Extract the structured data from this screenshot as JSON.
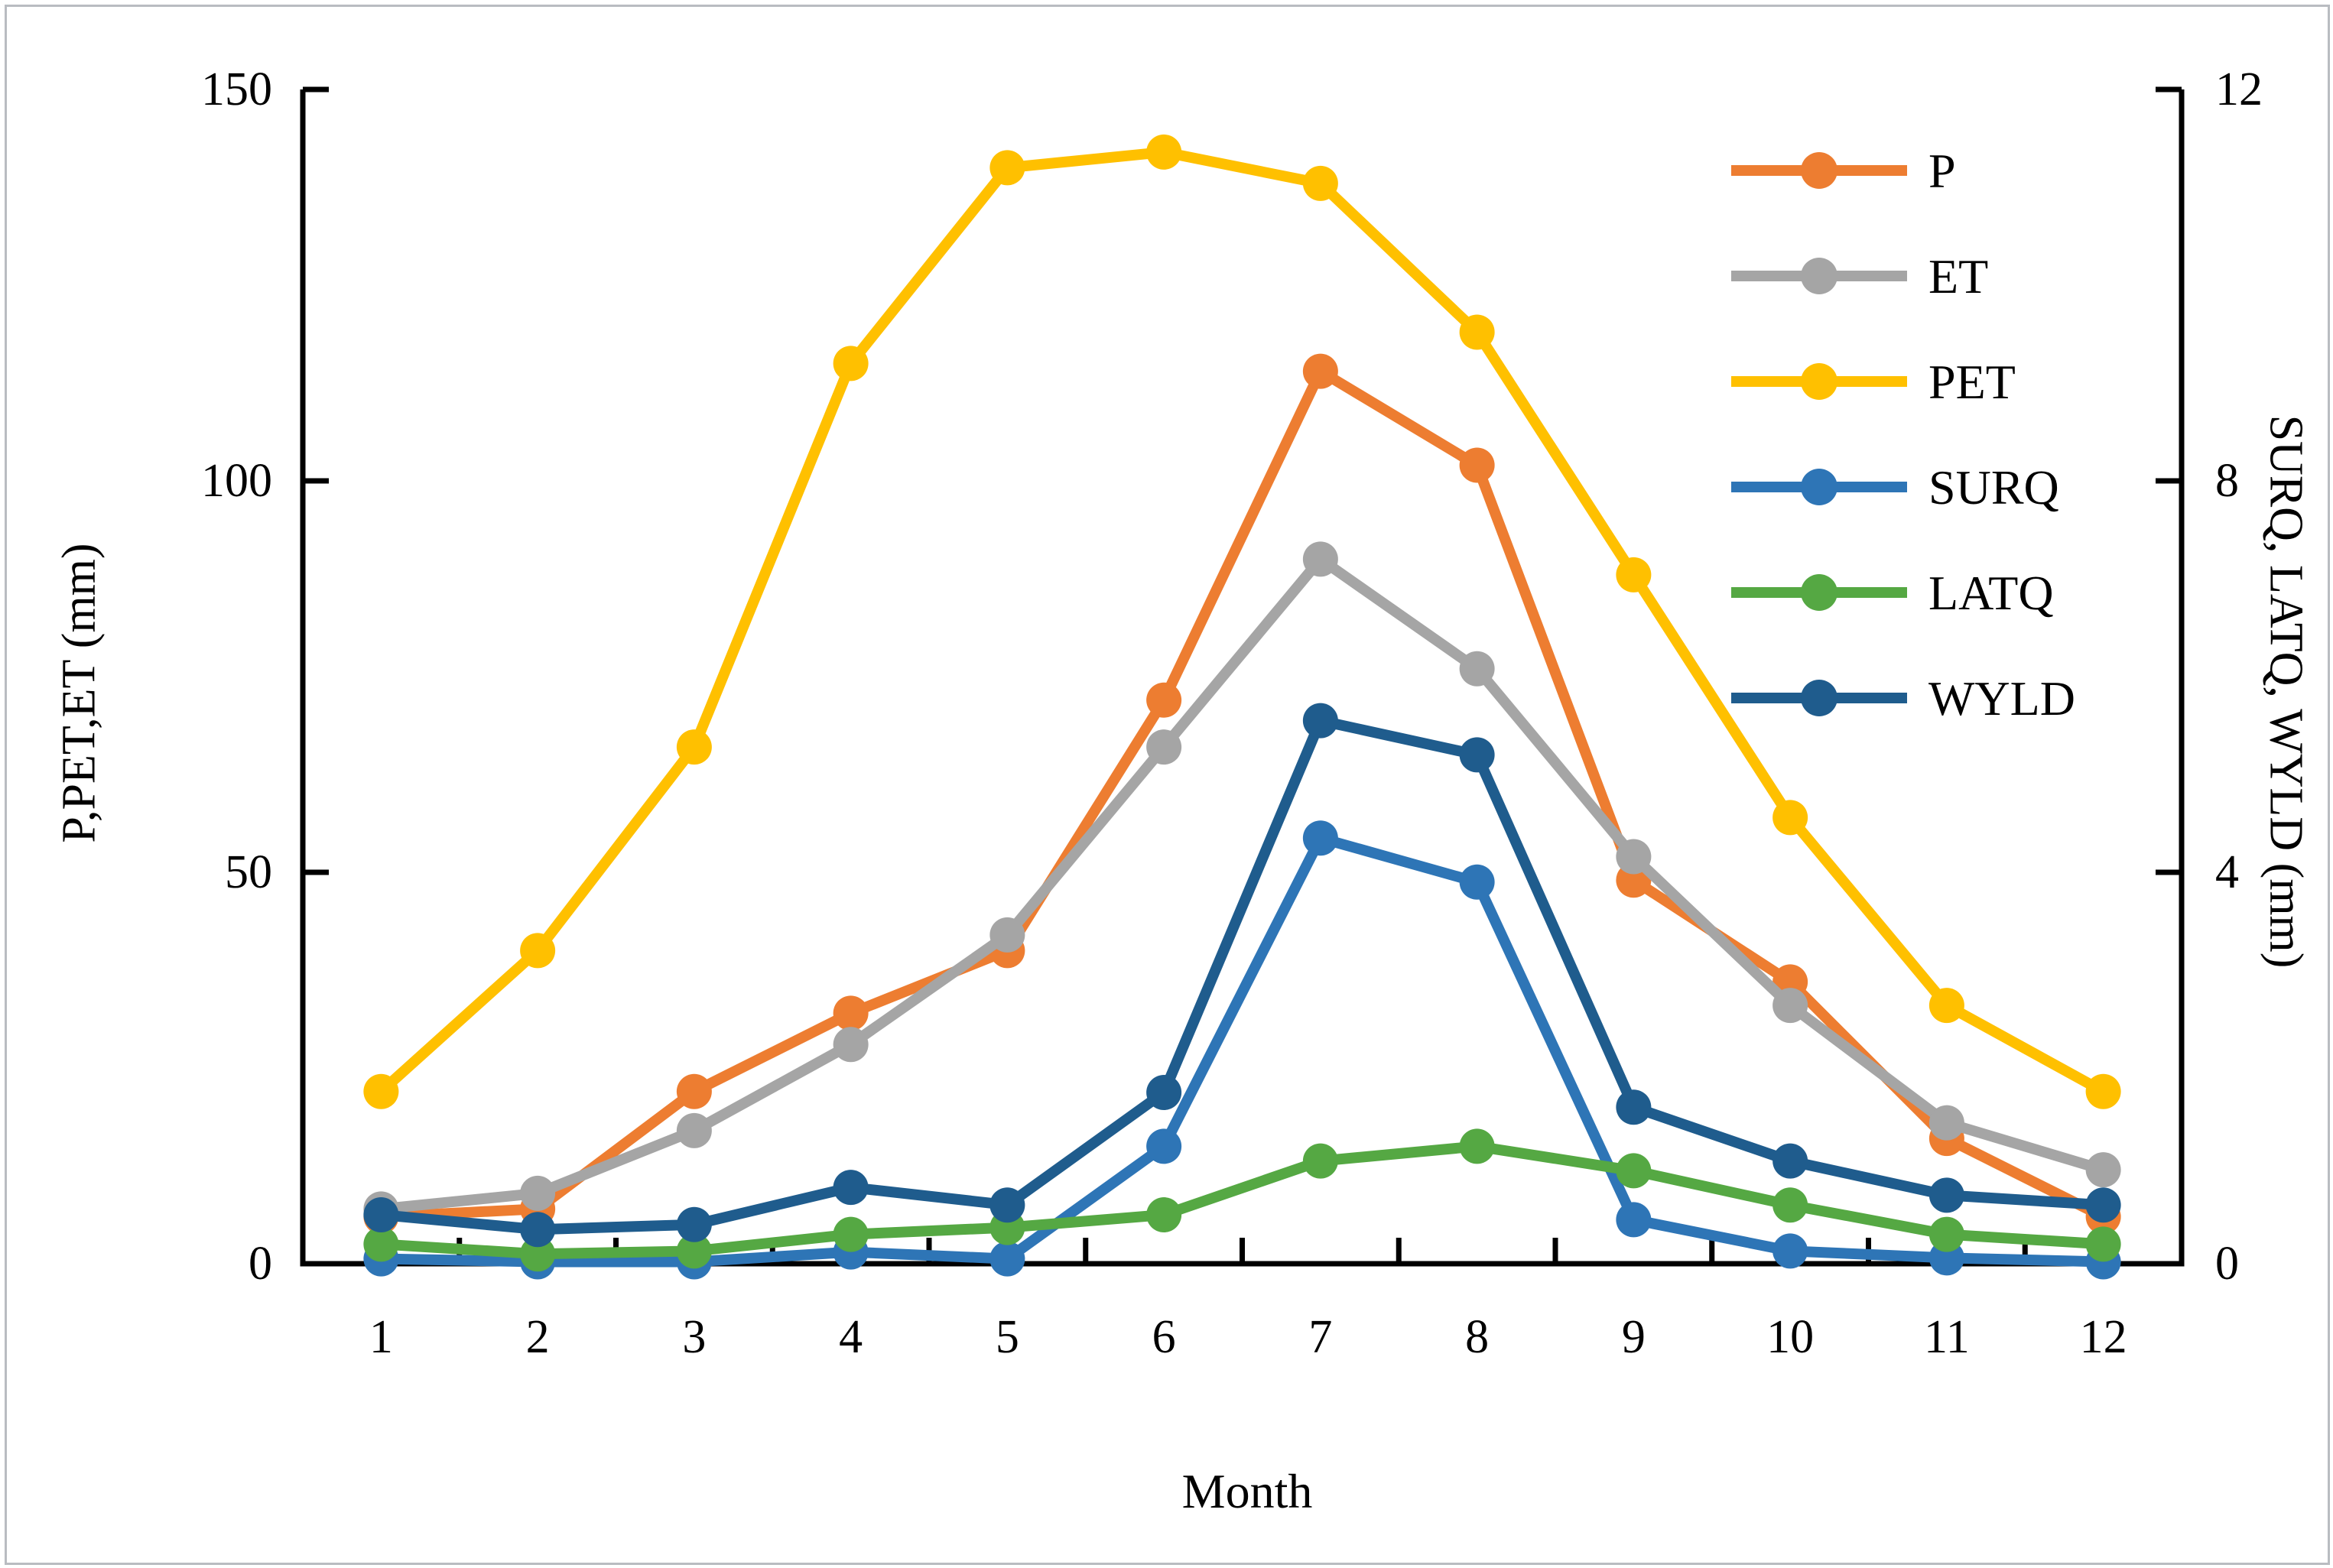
{
  "chart_data": {
    "type": "line",
    "title": "",
    "xlabel": "Month",
    "ylabel_left": "P,PET,ET (mm)",
    "ylabel_right": "SURQ, LATQ, WYLD (mm)",
    "x": [
      1,
      2,
      3,
      4,
      5,
      6,
      7,
      8,
      9,
      10,
      11,
      12
    ],
    "ylim_left": [
      0,
      150
    ],
    "yticks_left": [
      0,
      50,
      100,
      150
    ],
    "ylim_right": [
      0,
      12
    ],
    "yticks_right": [
      0,
      4,
      8,
      12
    ],
    "grid": "off",
    "legend_position": "top-right-inside",
    "series": [
      {
        "name": "P",
        "axis": "left",
        "color": "#ED7D31",
        "values": [
          6,
          7,
          22,
          32,
          40,
          72,
          114,
          102,
          49,
          36,
          16,
          6
        ]
      },
      {
        "name": "ET",
        "axis": "left",
        "color": "#A5A5A5",
        "values": [
          7,
          9,
          17,
          28,
          42,
          66,
          90,
          76,
          52,
          33,
          18,
          12
        ]
      },
      {
        "name": "PET",
        "axis": "left",
        "color": "#FFC000",
        "values": [
          22,
          40,
          66,
          115,
          140,
          142,
          138,
          119,
          88,
          57,
          33,
          22
        ]
      },
      {
        "name": "SURQ",
        "axis": "right",
        "color": "#2E75B6",
        "values": [
          0.05,
          0.02,
          0.02,
          0.12,
          0.05,
          1.2,
          4.35,
          3.9,
          0.45,
          0.13,
          0.06,
          0.02
        ]
      },
      {
        "name": "LATQ",
        "axis": "right",
        "color": "#55A843",
        "values": [
          0.2,
          0.1,
          0.13,
          0.3,
          0.37,
          0.5,
          1.05,
          1.2,
          0.95,
          0.6,
          0.3,
          0.2
        ]
      },
      {
        "name": "WYLD",
        "axis": "right",
        "color": "#1F5C8D",
        "values": [
          0.5,
          0.35,
          0.4,
          0.78,
          0.6,
          1.75,
          5.55,
          5.2,
          1.6,
          1.05,
          0.7,
          0.6
        ]
      }
    ]
  }
}
